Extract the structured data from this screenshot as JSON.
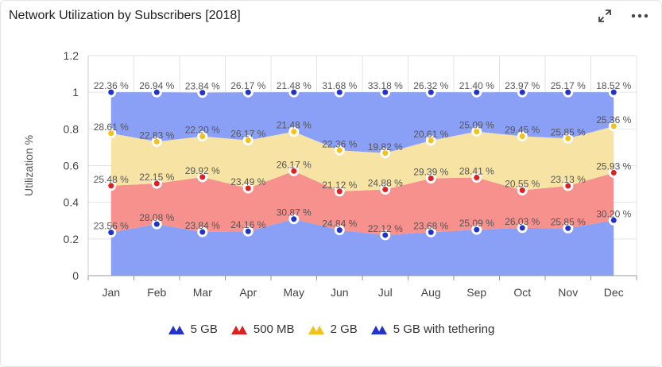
{
  "header": {
    "title": "Network Utilization by Subscribers [2018]",
    "expand_icon": "expand-icon",
    "menu_icon": "more-horizontal-icon"
  },
  "chart_data": {
    "type": "area",
    "categories": [
      "Jan",
      "Feb",
      "Mar",
      "Apr",
      "May",
      "Jun",
      "Jul",
      "Aug",
      "Sep",
      "Oct",
      "Nov",
      "Dec"
    ],
    "ylabel": "Utilization %",
    "ylim": [
      0,
      1.2
    ],
    "yticks": [
      "0",
      "0.2",
      "0.4",
      "0.6",
      "0.8",
      "1",
      "1.2"
    ],
    "grid": true,
    "legend_position": "bottom",
    "stacked": true,
    "series": [
      {
        "name": "5 GB",
        "color": "#8a9ff6",
        "marker_color": "#2233cc",
        "values": [
          0.2356,
          0.2808,
          0.2384,
          0.2416,
          0.3087,
          0.2484,
          0.2212,
          0.2368,
          0.2509,
          0.2603,
          0.2585,
          0.302
        ],
        "labels": [
          "23.56 %",
          "28.08 %",
          "23.84 %",
          "24.16 %",
          "30.87 %",
          "24.84 %",
          "22.12 %",
          "23.68 %",
          "25.09 %",
          "26.03 %",
          "25.85 %",
          "30.20 %"
        ]
      },
      {
        "name": "500 MB",
        "color": "#f7918d",
        "marker_color": "#e02020",
        "values": [
          0.2548,
          0.2215,
          0.2992,
          0.2349,
          0.2617,
          0.2112,
          0.2488,
          0.2939,
          0.2841,
          0.2055,
          0.2313,
          0.2593
        ],
        "labels": [
          "25.48 %",
          "22.15 %",
          "29.92 %",
          "23.49 %",
          "26.17 %",
          "21.12 %",
          "24.88 %",
          "29.39 %",
          "28.41 %",
          "20.55 %",
          "23.13 %",
          "25.93 %"
        ]
      },
      {
        "name": "2 GB",
        "color": "#f7e3a3",
        "marker_color": "#f2c21a",
        "values": [
          0.2861,
          0.2283,
          0.222,
          0.2617,
          0.2148,
          0.2236,
          0.1982,
          0.2061,
          0.2509,
          0.2945,
          0.2585,
          0.2536
        ],
        "labels": [
          "28.61 %",
          "22.83 %",
          "22.20 %",
          "26.17 %",
          "21.48 %",
          "22.36 %",
          "19.82 %",
          "20.61 %",
          "25.09 %",
          "29.45 %",
          "25.85 %",
          "25.36 %"
        ]
      },
      {
        "name": "5 GB with tethering",
        "color": "#8a9ff6",
        "marker_color": "#2233cc",
        "values": [
          0.2236,
          0.2694,
          0.2384,
          0.2617,
          0.2148,
          0.3168,
          0.3318,
          0.2632,
          0.214,
          0.2397,
          0.2517,
          0.1852
        ],
        "labels": [
          "22.36 %",
          "26.94 %",
          "23.84 %",
          "26.17 %",
          "21.48 %",
          "31.68 %",
          "33.18 %",
          "26.32 %",
          "21.40 %",
          "23.97 %",
          "25.17 %",
          "18.52 %"
        ]
      }
    ]
  }
}
